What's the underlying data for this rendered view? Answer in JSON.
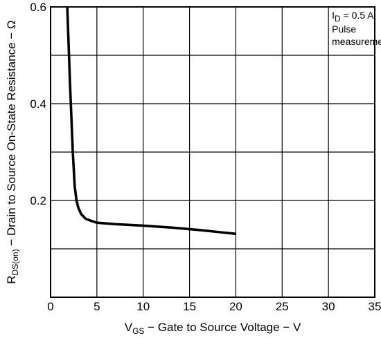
{
  "chart_data": {
    "type": "line",
    "title": "",
    "xlabel": {
      "symbol": "V",
      "subscript": "GS",
      "text": " − Gate to Source Voltage − V"
    },
    "ylabel": {
      "symbol": "R",
      "subscript": "DS(on)",
      "text": " − Drain to Source On-State Resistance − Ω"
    },
    "xlim": [
      0,
      35
    ],
    "ylim": [
      0,
      0.6
    ],
    "x_ticks": [
      0,
      5,
      10,
      15,
      20,
      25,
      30,
      35
    ],
    "x_tick_labels": [
      "0",
      "5",
      "10",
      "15",
      "20",
      "25",
      "30",
      "35"
    ],
    "y_ticks": [
      0.2,
      0.4,
      0.6
    ],
    "y_tick_labels": [
      "0.2",
      "0.4",
      "0.6"
    ],
    "grid": true,
    "grid_x_step": 5,
    "grid_y_step": 0.1,
    "annotation": {
      "symbol": "I",
      "subscript": "D",
      "value": " = 0.5 A",
      "line2": "Pulse",
      "line3": "measurement"
    },
    "series": [
      {
        "color": "#000000",
        "x": [
          1.8,
          2.1,
          2.4,
          2.6,
          2.8,
          3.0,
          3.3,
          3.8,
          4.5,
          5.0,
          7.0,
          10.0,
          13.0,
          16.0,
          18.0,
          20.0
        ],
        "y": [
          0.6,
          0.44,
          0.3,
          0.23,
          0.2,
          0.185,
          0.172,
          0.162,
          0.157,
          0.154,
          0.151,
          0.148,
          0.144,
          0.139,
          0.135,
          0.131
        ]
      }
    ]
  }
}
